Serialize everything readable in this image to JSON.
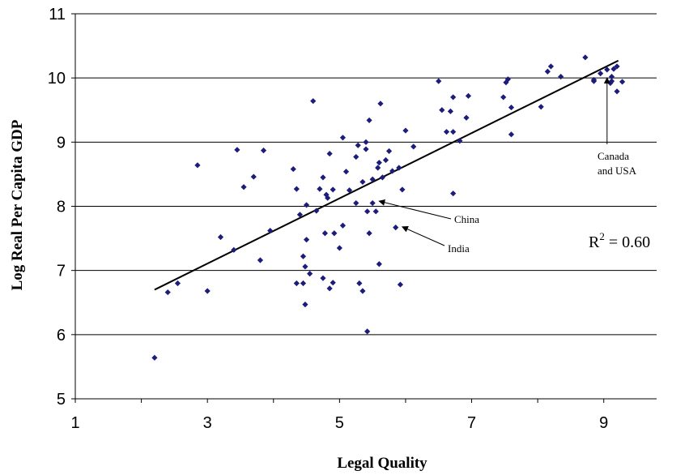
{
  "chart_data": {
    "type": "scatter",
    "xlabel": "Legal Quality",
    "ylabel": "Log Real Per Capita GDP",
    "xlim": [
      1,
      9.8
    ],
    "ylim": [
      5,
      11
    ],
    "xticks": [
      1,
      3,
      5,
      7,
      9
    ],
    "yticks": [
      5,
      6,
      7,
      8,
      9,
      10,
      11
    ],
    "grid": "horizontal",
    "point_color": "#1c1c7a",
    "points": [
      [
        2.2,
        5.64
      ],
      [
        2.4,
        6.66
      ],
      [
        2.55,
        6.8
      ],
      [
        2.85,
        8.64
      ],
      [
        3.0,
        6.68
      ],
      [
        3.2,
        7.52
      ],
      [
        3.4,
        7.32
      ],
      [
        3.45,
        8.88
      ],
      [
        3.55,
        8.3
      ],
      [
        3.7,
        8.46
      ],
      [
        3.8,
        7.16
      ],
      [
        3.85,
        8.87
      ],
      [
        3.95,
        7.62
      ],
      [
        4.3,
        8.58
      ],
      [
        4.35,
        8.27
      ],
      [
        4.35,
        6.8
      ],
      [
        4.4,
        7.87
      ],
      [
        4.45,
        6.8
      ],
      [
        4.45,
        7.22
      ],
      [
        4.48,
        7.06
      ],
      [
        4.48,
        6.47
      ],
      [
        4.5,
        7.48
      ],
      [
        4.5,
        8.02
      ],
      [
        4.55,
        6.95
      ],
      [
        4.6,
        9.64
      ],
      [
        4.65,
        7.93
      ],
      [
        4.7,
        8.27
      ],
      [
        4.75,
        8.45
      ],
      [
        4.75,
        6.88
      ],
      [
        4.78,
        7.58
      ],
      [
        4.8,
        8.18
      ],
      [
        4.82,
        8.13
      ],
      [
        4.85,
        8.82
      ],
      [
        4.85,
        6.72
      ],
      [
        4.9,
        8.26
      ],
      [
        4.9,
        6.81
      ],
      [
        4.92,
        7.58
      ],
      [
        5.0,
        7.35
      ],
      [
        5.05,
        7.7
      ],
      [
        5.05,
        9.07
      ],
      [
        5.1,
        8.54
      ],
      [
        5.15,
        8.25
      ],
      [
        5.25,
        8.05
      ],
      [
        5.25,
        8.77
      ],
      [
        5.28,
        8.95
      ],
      [
        5.3,
        6.8
      ],
      [
        5.35,
        8.38
      ],
      [
        5.35,
        6.68
      ],
      [
        5.4,
        8.89
      ],
      [
        5.4,
        9.0
      ],
      [
        5.42,
        7.92
      ],
      [
        5.42,
        6.05
      ],
      [
        5.45,
        7.58
      ],
      [
        5.45,
        9.34
      ],
      [
        5.5,
        8.05
      ],
      [
        5.5,
        8.42
      ],
      [
        5.55,
        7.92
      ],
      [
        5.58,
        8.6
      ],
      [
        5.6,
        7.1
      ],
      [
        5.6,
        8.68
      ],
      [
        5.62,
        9.6
      ],
      [
        5.65,
        8.45
      ],
      [
        5.7,
        8.72
      ],
      [
        5.75,
        8.86
      ],
      [
        5.8,
        8.55
      ],
      [
        5.85,
        7.67
      ],
      [
        5.9,
        8.6
      ],
      [
        5.92,
        6.78
      ],
      [
        5.95,
        8.26
      ],
      [
        6.0,
        9.18
      ],
      [
        6.12,
        8.93
      ],
      [
        6.5,
        9.95
      ],
      [
        6.55,
        9.5
      ],
      [
        6.62,
        9.16
      ],
      [
        6.68,
        9.48
      ],
      [
        6.72,
        9.7
      ],
      [
        6.72,
        8.2
      ],
      [
        6.72,
        9.16
      ],
      [
        6.82,
        9.02
      ],
      [
        6.92,
        9.38
      ],
      [
        6.95,
        9.72
      ],
      [
        7.48,
        9.7
      ],
      [
        7.52,
        9.93
      ],
      [
        7.55,
        9.98
      ],
      [
        7.6,
        9.54
      ],
      [
        7.6,
        9.12
      ],
      [
        8.05,
        9.55
      ],
      [
        8.15,
        10.1
      ],
      [
        8.2,
        10.18
      ],
      [
        8.35,
        10.02
      ],
      [
        8.72,
        10.32
      ],
      [
        8.85,
        9.95
      ],
      [
        8.85,
        9.97
      ],
      [
        8.95,
        10.07
      ],
      [
        9.05,
        10.13
      ],
      [
        9.1,
        9.92
      ],
      [
        9.12,
        10.02
      ],
      [
        9.12,
        9.95
      ],
      [
        9.15,
        10.14
      ],
      [
        9.2,
        9.79
      ],
      [
        9.2,
        10.18
      ],
      [
        9.28,
        9.94
      ]
    ],
    "trendline": {
      "from": [
        2.2,
        6.7
      ],
      "to": [
        9.22,
        10.27
      ]
    },
    "annotations": [
      {
        "label": "China",
        "x": 5.6,
        "y": 8.08
      },
      {
        "label": "India",
        "x": 5.95,
        "y": 7.68
      },
      {
        "label": "Canada and USA",
        "x": 9.05,
        "y": 10.0
      }
    ],
    "r2_label": {
      "base": "R",
      "sup": "2",
      "rest": " = 0.60"
    }
  }
}
